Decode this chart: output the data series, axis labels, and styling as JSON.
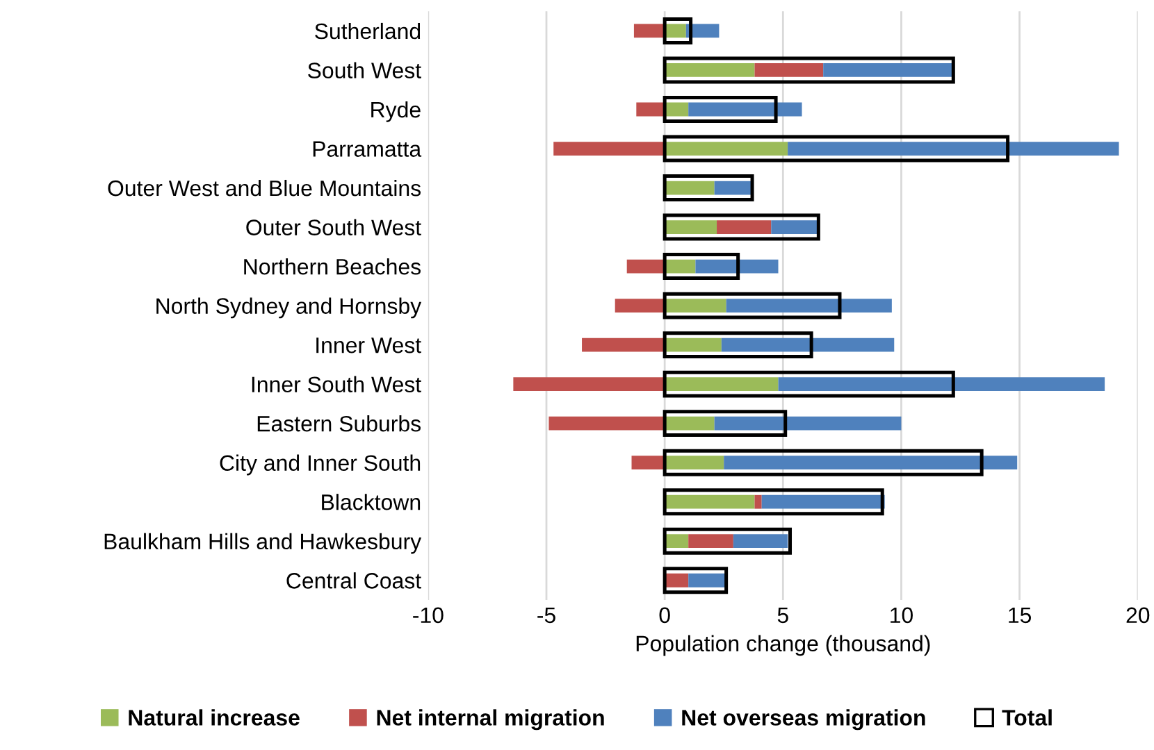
{
  "chart_data": [
    {
      "type": "bar",
      "orientation": "horizontal",
      "stacked": true,
      "xlabel": "Population change (thousand)",
      "categories": [
        "Sutherland",
        "South West",
        "Ryde",
        "Parramatta",
        "Outer West and Blue Mountains",
        "Outer South West",
        "Northern Beaches",
        "North Sydney and Hornsby",
        "Inner West",
        "Inner South West",
        "Eastern Suburbs",
        "City and Inner South",
        "Blacktown",
        "Baulkham Hills and Hawkesbury",
        "Central Coast"
      ],
      "series": [
        {
          "name": "Natural increase",
          "color": "#9bbb59",
          "values": [
            0.9,
            3.8,
            1.0,
            5.2,
            2.1,
            2.2,
            1.3,
            2.6,
            2.4,
            4.8,
            2.1,
            2.5,
            3.8,
            1.0,
            null
          ]
        },
        {
          "name": "Net internal migration",
          "color": "#c0504d",
          "values": [
            -1.3,
            2.9,
            -1.2,
            -4.7,
            null,
            2.3,
            -1.6,
            -2.1,
            -3.5,
            -6.4,
            -4.9,
            -1.4,
            0.3,
            1.9,
            1.0
          ]
        },
        {
          "name": "Net overseas migration",
          "color": "#4f81bd",
          "values": [
            1.4,
            5.5,
            4.8,
            14.0,
            1.6,
            2.0,
            3.5,
            7.0,
            7.3,
            13.8,
            7.9,
            12.4,
            5.2,
            2.3,
            1.6
          ]
        }
      ],
      "xlim": [
        -10,
        20
      ],
      "xticks": [
        -10,
        -5,
        0,
        5,
        10,
        15,
        20
      ],
      "grid": "x",
      "legend": "bottom"
    },
    {
      "type": "bar",
      "orientation": "horizontal",
      "categories": [
        null,
        null,
        null,
        null,
        null,
        null,
        null,
        null,
        null,
        null,
        null,
        null,
        null,
        null,
        null
      ],
      "series": [
        {
          "name": "Total",
          "color": "#000000",
          "values": [
            1.1,
            12.2,
            4.7,
            14.5,
            3.7,
            6.5,
            3.1,
            7.4,
            6.2,
            12.2,
            5.1,
            13.4,
            9.2,
            5.3,
            2.6
          ]
        }
      ],
      "xlim": [
        -10,
        20
      ],
      "legend": "bottom"
    }
  ]
}
